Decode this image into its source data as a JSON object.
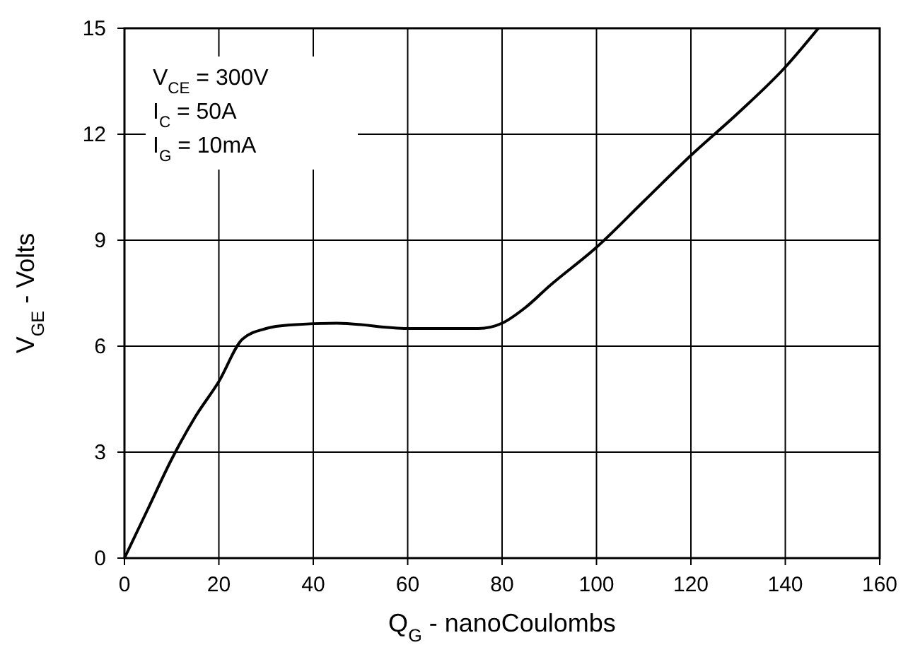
{
  "chart_data": {
    "type": "line",
    "xlabel": "Q$_{G}$ - nanoCoulombs",
    "ylabel": "V$_{GE}$ - Volts",
    "annotations": [
      "V$_{CE}$ = 300V",
      "I$_{C}$ = 50A",
      "I$_{G}$ = 10mA"
    ],
    "series": [
      {
        "color": "#000000",
        "x": [
          0,
          5,
          10,
          15,
          20,
          25,
          30,
          35,
          45,
          60,
          75,
          80,
          85,
          90,
          100,
          110,
          120,
          130,
          140,
          147
        ],
        "values": [
          0,
          1.4,
          2.8,
          4.0,
          5.0,
          6.2,
          6.5,
          6.6,
          6.65,
          6.5,
          6.5,
          6.65,
          7.1,
          7.7,
          8.8,
          10.1,
          11.4,
          12.6,
          13.9,
          15
        ]
      }
    ],
    "xlim": [
      0,
      160
    ],
    "xticks": [
      0,
      20,
      40,
      60,
      80,
      100,
      120,
      140,
      160
    ],
    "ylim": [
      0,
      15
    ],
    "yticks": [
      0,
      3,
      6,
      9,
      12,
      15
    ],
    "grid": true,
    "marker": "none",
    "line_style": "solid"
  }
}
